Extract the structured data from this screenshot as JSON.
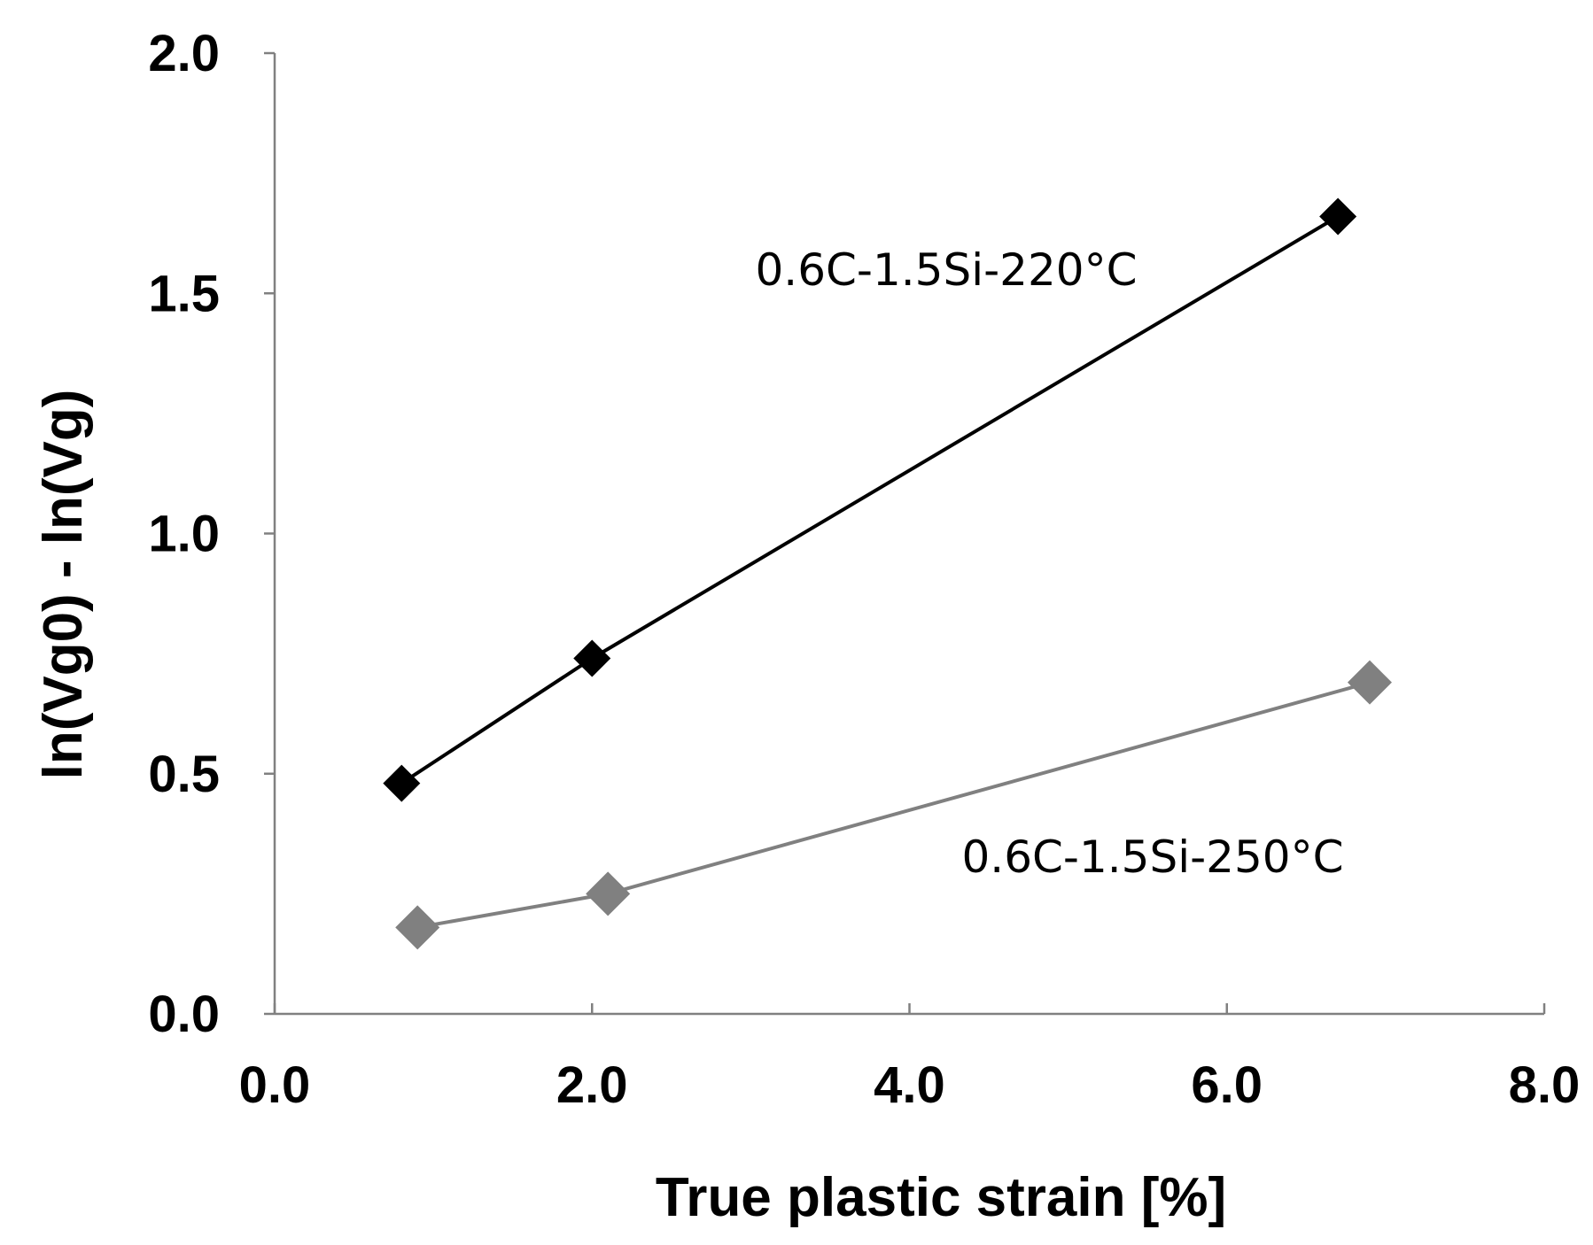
{
  "chart_data": {
    "type": "line",
    "xlabel": "True plastic strain [%]",
    "ylabel": "ln(Vg0) - ln(Vg)",
    "xlim": [
      0,
      8
    ],
    "ylim": [
      0,
      2
    ],
    "xticks": [
      0,
      2,
      4,
      6,
      8
    ],
    "xtick_labels": [
      "0.0",
      "2.0",
      "4.0",
      "6.0",
      "8.0"
    ],
    "yticks": [
      0,
      0.5,
      1,
      1.5,
      2
    ],
    "ytick_labels": [
      "0.0",
      "0.5",
      "1.0",
      "1.5",
      "2.0"
    ],
    "grid": false,
    "series": [
      {
        "name": "0.6C-1.5Si-220°C",
        "marker": "diamond",
        "color": "#000000",
        "x": [
          0.8,
          2.0,
          6.7
        ],
        "y": [
          0.48,
          0.74,
          1.66
        ]
      },
      {
        "name": "0.6C-1.5Si-250°C",
        "marker": "diamond",
        "color": "#808080",
        "x": [
          0.9,
          2.1,
          6.9
        ],
        "y": [
          0.18,
          0.25,
          0.69
        ]
      }
    ]
  }
}
